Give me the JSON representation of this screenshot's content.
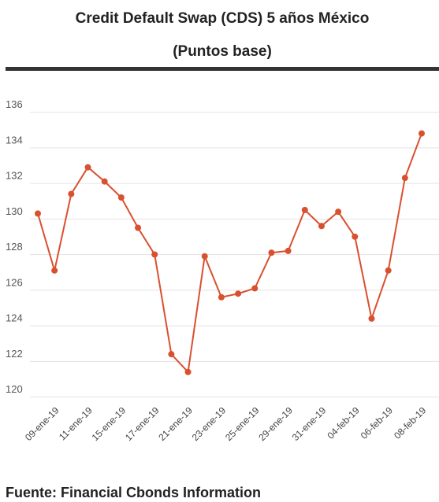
{
  "chart_data": {
    "type": "line",
    "title": "Credit Default Swap (CDS) 5 años México",
    "subtitle": "(Puntos base)",
    "source": "Fuente: Financial Cbonds Information",
    "categories": [
      null,
      "09-ene-19",
      null,
      "11-ene-19",
      null,
      "15-ene-19",
      null,
      "17-ene-19",
      null,
      "21-ene-19",
      null,
      "23-ene-19",
      null,
      "25-ene-19",
      null,
      "29-ene-19",
      null,
      "31-ene-19",
      null,
      "04-feb-19",
      null,
      "06-feb-19",
      null,
      "08-feb-19"
    ],
    "series": [
      {
        "name": "CDS",
        "color": "#d9502f",
        "values": [
          130.0,
          126.8,
          131.1,
          132.6,
          131.8,
          130.9,
          129.2,
          127.7,
          122.1,
          121.1,
          127.6,
          125.3,
          125.5,
          125.8,
          127.8,
          127.9,
          130.2,
          129.3,
          130.1,
          128.7,
          124.1,
          126.8,
          132.0,
          134.5
        ]
      }
    ],
    "ylim": [
      119.5,
      137
    ],
    "yticks": [
      120,
      122,
      124,
      126,
      128,
      130,
      132,
      134,
      136
    ],
    "grid": true
  }
}
